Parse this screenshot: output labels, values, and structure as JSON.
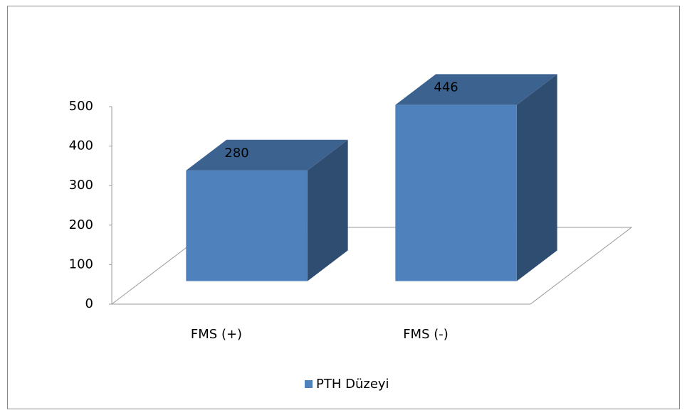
{
  "chart_data": {
    "type": "bar3d",
    "categories": [
      "FMS (+)",
      "FMS (-)"
    ],
    "series": [
      {
        "name": "PTH Düzeyi",
        "color": "#4f81bd",
        "values": [
          280,
          446
        ]
      }
    ],
    "ylim": [
      0,
      500
    ],
    "yticks": [
      0,
      100,
      200,
      300,
      400,
      500
    ],
    "legend": "bottom"
  }
}
